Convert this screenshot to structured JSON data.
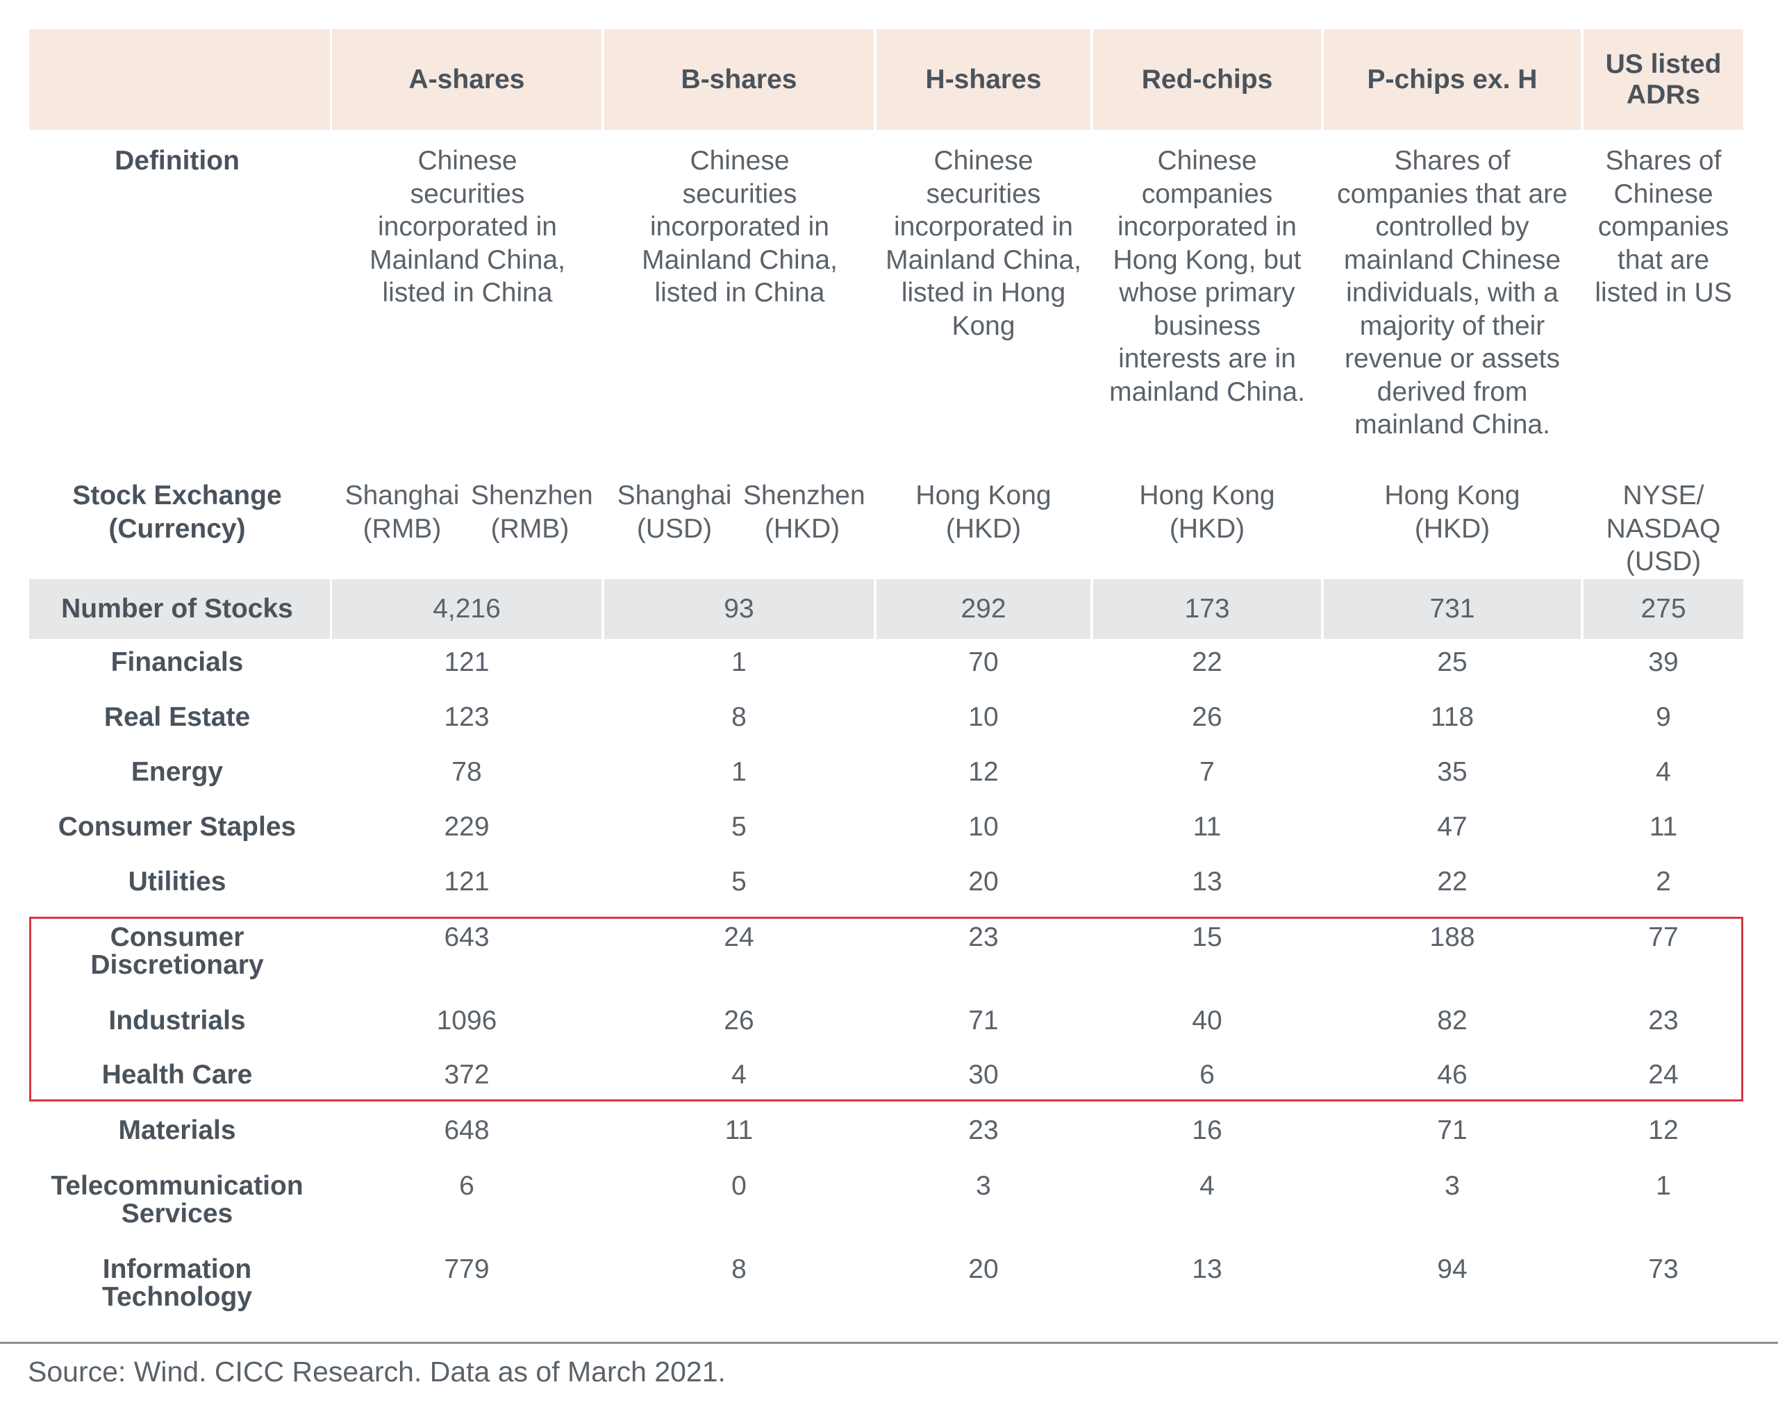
{
  "header": {
    "columns": [
      "A-shares",
      "B-shares",
      "H-shares",
      "Red-chips",
      "P-chips ex. H",
      "US listed ADRs"
    ]
  },
  "definition": {
    "label": "Definition",
    "values": [
      "Chinese securities incorporated in Mainland China, listed in China",
      "Chinese securities incorporated in Mainland China, listed in China",
      "Chinese securities incorporated in Mainland China, listed in Hong Kong",
      "Chinese companies incorporated in Hong Kong, but whose primary business interests are in mainland China.",
      "Shares of companies that are controlled by mainland Chinese individuals, with a majority of their revenue or assets derived from mainland China.",
      "Shares of Chinese companies that are listed in US"
    ]
  },
  "exchange": {
    "label": "Stock Exchange (Currency)",
    "a_sub": [
      {
        "name": "Shanghai",
        "cur": "(RMB)"
      },
      {
        "name": "Shenzhen",
        "cur": "(RMB)"
      }
    ],
    "b_sub": [
      {
        "name": "Shanghai",
        "cur": "(USD)"
      },
      {
        "name": "Shenzhen",
        "cur": "(HKD)"
      }
    ],
    "h": "Hong Kong (HKD)",
    "red": "Hong Kong (HKD)",
    "p": "Hong Kong (HKD)",
    "us": "NYSE/ NASDAQ (USD)"
  },
  "number_of_stocks": {
    "label": "Number of Stocks",
    "values": [
      "4,216",
      "93",
      "292",
      "173",
      "731",
      "275"
    ]
  },
  "sectors": [
    {
      "label": "Financials",
      "values": [
        "121",
        "1",
        "70",
        "22",
        "25",
        "39"
      ]
    },
    {
      "label": "Real Estate",
      "values": [
        "123",
        "8",
        "10",
        "26",
        "118",
        "9"
      ]
    },
    {
      "label": "Energy",
      "values": [
        "78",
        "1",
        "12",
        "7",
        "35",
        "4"
      ]
    },
    {
      "label": "Consumer Staples",
      "values": [
        "229",
        "5",
        "10",
        "11",
        "47",
        "11"
      ]
    },
    {
      "label": "Utilities",
      "values": [
        "121",
        "5",
        "20",
        "13",
        "22",
        "2"
      ]
    },
    {
      "label": "Consumer Discretionary",
      "values": [
        "643",
        "24",
        "23",
        "15",
        "188",
        "77"
      ]
    },
    {
      "label": "Industrials",
      "values": [
        "1096",
        "26",
        "71",
        "40",
        "82",
        "23"
      ]
    },
    {
      "label": "Health Care",
      "values": [
        "372",
        "4",
        "30",
        "6",
        "46",
        "24"
      ]
    },
    {
      "label": "Materials",
      "values": [
        "648",
        "11",
        "23",
        "16",
        "71",
        "12"
      ]
    },
    {
      "label": "Telecommunication Services",
      "values": [
        "6",
        "0",
        "3",
        "4",
        "3",
        "1"
      ]
    },
    {
      "label": "Information Technology",
      "values": [
        "779",
        "8",
        "20",
        "13",
        "94",
        "73"
      ]
    }
  ],
  "colors": {
    "header_bg": "#f7e8e0",
    "total_row_bg": "#e6e7e8",
    "highlight_border": "#d9363e",
    "text": "#5a626a"
  },
  "source": "Source: Wind. CICC Research. Data as of March 2021."
}
